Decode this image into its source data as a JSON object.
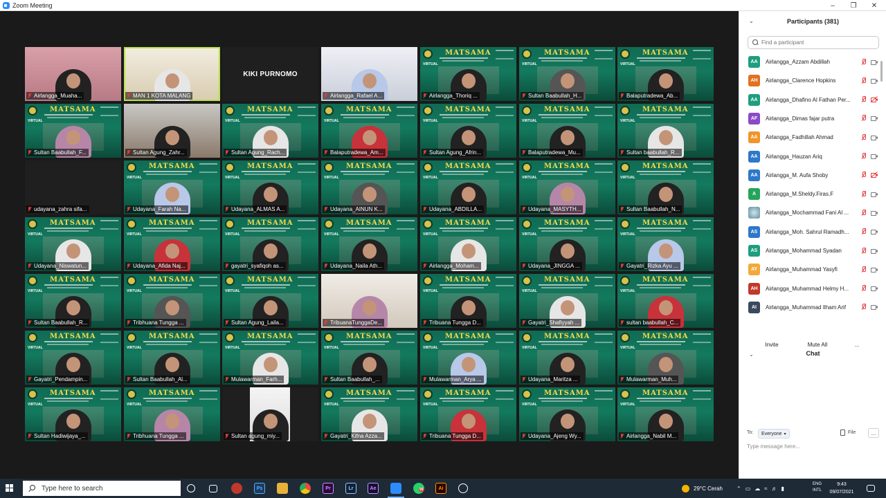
{
  "window": {
    "title": "Zoom Meeting"
  },
  "grid": {
    "tiles": [
      {
        "name": "Airlangga_Muaha...",
        "bg": "room"
      },
      {
        "name": "MAN 1 KOTA MALANG",
        "bg": "active"
      },
      {
        "name": "KIKI PURNOMO",
        "bg": "black",
        "center": true
      },
      {
        "name": "Airlangga_Rafael A...",
        "bg": "room3"
      },
      {
        "name": "Airlangga_Thoriq ...",
        "bg": "poster"
      },
      {
        "name": "Sultan Baabullah_H...",
        "bg": "poster"
      },
      {
        "name": "Balaputradewa_Ab...",
        "bg": "poster"
      },
      {
        "name": "Sultan Baabullah_F...",
        "bg": "poster"
      },
      {
        "name": "Sultan Agung_Zahr...",
        "bg": "room2"
      },
      {
        "name": "Sultan Agung_Rach...",
        "bg": "poster"
      },
      {
        "name": "Balaputradewa_Am...",
        "bg": "poster"
      },
      {
        "name": "Sultan Agung_Afrin...",
        "bg": "poster"
      },
      {
        "name": "Balaputradewa_Mu...",
        "bg": "poster"
      },
      {
        "name": "Sultan baabullah_R...",
        "bg": "poster"
      },
      {
        "name": "udayana_zahra sifa...",
        "bg": "black"
      },
      {
        "name": "Udayana_Farah Na...",
        "bg": "poster"
      },
      {
        "name": "Udayana_ALMAS A...",
        "bg": "poster"
      },
      {
        "name": "Udayana_AINUN K...",
        "bg": "poster"
      },
      {
        "name": "Udayana_ABDILLA...",
        "bg": "poster"
      },
      {
        "name": "Udayana_MASYTH...",
        "bg": "poster"
      },
      {
        "name": "Sultan Baabullah_N...",
        "bg": "poster"
      },
      {
        "name": "Udayana_Niswatun...",
        "bg": "poster"
      },
      {
        "name": "Udayana_Afida Naj...",
        "bg": "poster"
      },
      {
        "name": "gayatri_syafiqoh as...",
        "bg": "poster"
      },
      {
        "name": "Udayana_Naila Ath...",
        "bg": "poster"
      },
      {
        "name": "Airlangga_Moham...",
        "bg": "poster"
      },
      {
        "name": "Udayana_JINGGA ...",
        "bg": "poster"
      },
      {
        "name": "Gayatri_Rizka Ayu ...",
        "bg": "poster"
      },
      {
        "name": "Sultan Baabullah_R...",
        "bg": "poster"
      },
      {
        "name": "Tribhuana Tungga ...",
        "bg": "poster"
      },
      {
        "name": "Sultan Agung_Laila...",
        "bg": "poster"
      },
      {
        "name": "TribuanaTunggaDe...",
        "bg": "room4"
      },
      {
        "name": "Tribuana Tungga D...",
        "bg": "poster"
      },
      {
        "name": "Gayatri_Shafiyyah ...",
        "bg": "poster"
      },
      {
        "name": "sultan baabullah_C...",
        "bg": "poster"
      },
      {
        "name": "Gayatri_Pendampin...",
        "bg": "poster"
      },
      {
        "name": "Sultan Baabullah_Al...",
        "bg": "poster"
      },
      {
        "name": "Mulawarman_Farh...",
        "bg": "poster"
      },
      {
        "name": "Sultan Baabullah_...",
        "bg": "poster"
      },
      {
        "name": "Mulawarman_Arya ...",
        "bg": "poster"
      },
      {
        "name": "Udayana_Maritza ...",
        "bg": "poster"
      },
      {
        "name": "Mulawarman_Muh...",
        "bg": "poster"
      },
      {
        "name": "Sultan Hadiwijaya_...",
        "bg": "poster"
      },
      {
        "name": "Tribhuana Tungga ...",
        "bg": "poster"
      },
      {
        "name": "Sultan agung_miy...",
        "bg": "pip"
      },
      {
        "name": "Gayatri_Kifna Azza...",
        "bg": "poster"
      },
      {
        "name": "Tribuana Tungga D...",
        "bg": "poster"
      },
      {
        "name": "Udayana_Ajeng Wy...",
        "bg": "poster"
      },
      {
        "name": "Airlangga_Nabil M...",
        "bg": "poster"
      }
    ],
    "poster_title": "MATSAMA",
    "poster_tag": "VIRTUAL"
  },
  "participants": {
    "header": "Participants (381)",
    "search_placeholder": "Find a participant",
    "items": [
      {
        "initials": "AA",
        "color": "#1e9e7e",
        "name": "Airlangga_Azzam Abdillah",
        "cam_red": false
      },
      {
        "initials": "AH",
        "color": "#e0731f",
        "name": "Airlangga_Clarence Hopkins",
        "cam_red": false
      },
      {
        "initials": "AA",
        "color": "#1e9e7e",
        "name": "Airlangga_Dhafino Al Fathan Per...",
        "cam_red": true
      },
      {
        "initials": "AF",
        "color": "#8a4ac7",
        "name": "Airlangga_Dimas fajar putra",
        "cam_red": false
      },
      {
        "initials": "AA",
        "color": "#f0952a",
        "name": "Airlangga_Fadhillah Ahmad",
        "cam_red": false
      },
      {
        "initials": "AA",
        "color": "#2d78c9",
        "name": "Airlangga_Hauzan Ariq",
        "cam_red": false
      },
      {
        "initials": "AA",
        "color": "#2d78c9",
        "name": "Airlangga_M. Aufa Shoby",
        "cam_red": true
      },
      {
        "initials": "A",
        "color": "#25a55a",
        "name": "Airlangga_M.Sheldy.Firas.F",
        "cam_red": false
      },
      {
        "initials": "",
        "color": "photo",
        "name": "Airlangga_Mochammad Fani Al ...",
        "cam_red": false
      },
      {
        "initials": "AS",
        "color": "#2d78c9",
        "name": "Airlangga_Moh. Sahrul Ramadh...",
        "cam_red": false
      },
      {
        "initials": "AS",
        "color": "#1e9e7e",
        "name": "Airlangga_Mohammad Syadan",
        "cam_red": false
      },
      {
        "initials": "AY",
        "color": "#f2a93b",
        "name": "Airlangga_Muhammad Yasyfi",
        "cam_red": false
      },
      {
        "initials": "AH",
        "color": "#c0392b",
        "name": "Airlangga_Muhammad Helmy H...",
        "cam_red": false
      },
      {
        "initials": "AI",
        "color": "#3a4a5c",
        "name": "Airlangga_Muhammad Ilham Arif",
        "cam_red": false
      }
    ],
    "invite_label": "Invite",
    "mute_all_label": "Mute All",
    "more_label": "..."
  },
  "chat": {
    "header": "Chat",
    "to_label": "To:",
    "recipient": "Everyone",
    "file_label": "File",
    "more_label": "...",
    "input_placeholder": "Type message here..."
  },
  "taskbar": {
    "search_placeholder": "Type here to search",
    "whatsapp_badge": "99",
    "weather": "29°C Cerah",
    "lang_top": "ENG",
    "lang_bottom": "INTL",
    "time": "9:43",
    "date": "09/07/2021"
  }
}
